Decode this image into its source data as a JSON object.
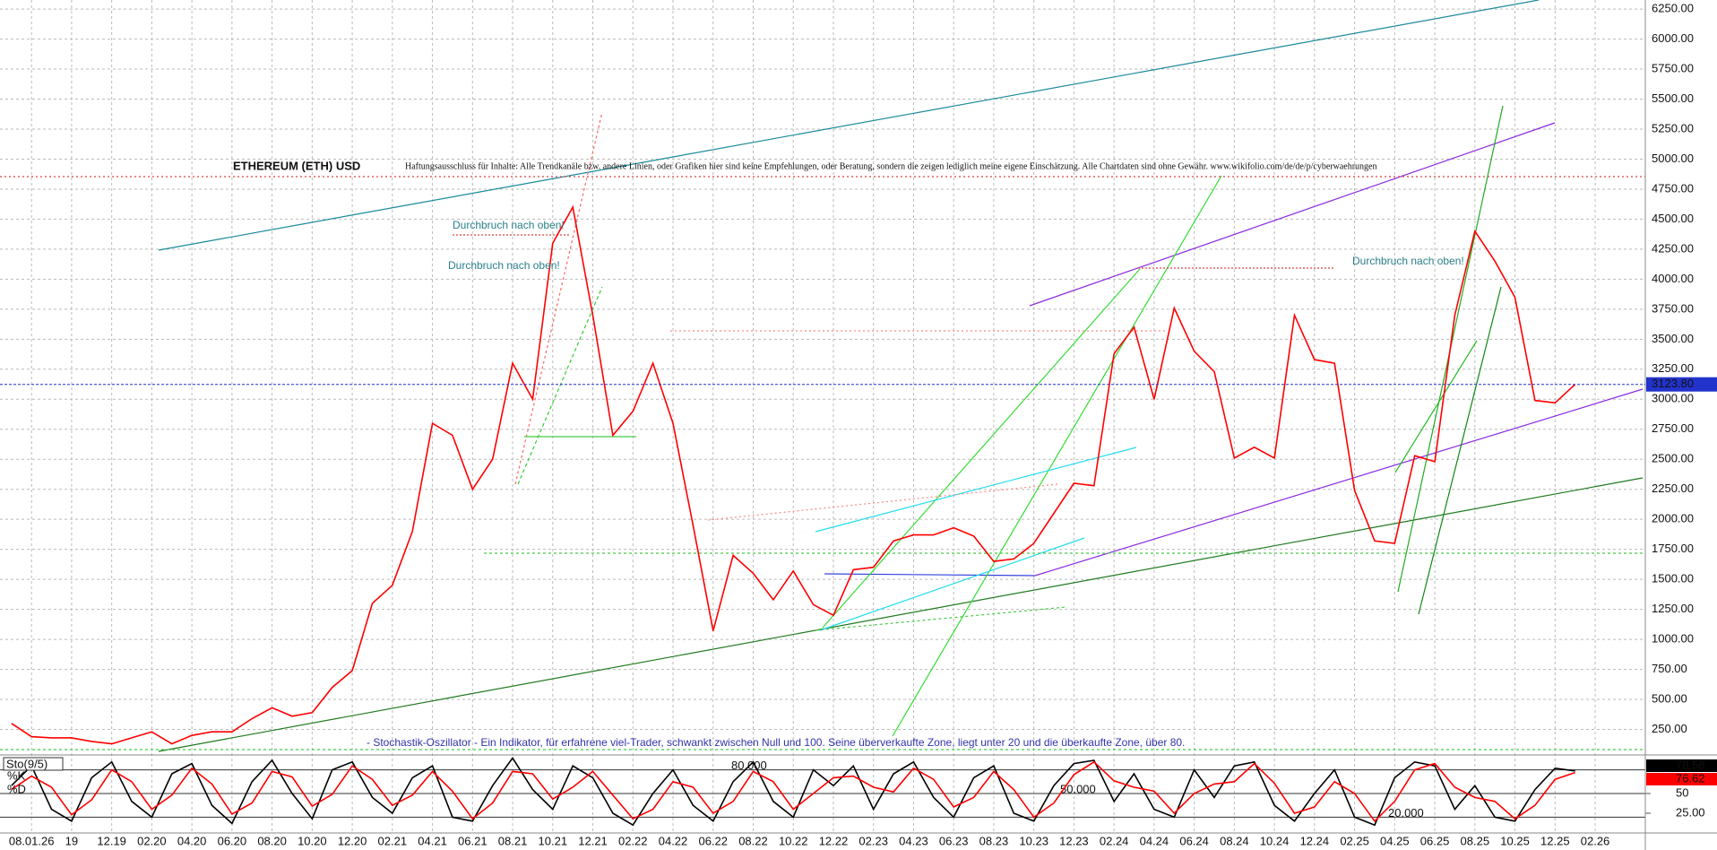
{
  "chart_data": [
    {
      "type": "line",
      "title": "ETHEREUM (ETH) USD",
      "subtitle": "Haftungsausschluss für Inhalte: Alle Trendkanäle bzw. andere Linien, oder Grafiken hier sind keine Empfehlungen, oder Beratung, sondern die zeigen lediglich meine eigene Einschätzung. Alle Chartdaten sind ohne Gewähr. www.wikifolio.com/de/de/p/cyberwaehrungen",
      "annotations": [
        "Durchbruch nach oben!",
        "Durchbruch nach oben!",
        "Durchbruch nach oben!"
      ],
      "categories": [
        null,
        "08.01.26",
        null,
        "19",
        null,
        "12.19",
        null,
        "02.20",
        null,
        "04.20",
        null,
        "06.20",
        null,
        "08.20",
        null,
        "10.20",
        null,
        "12.20",
        null,
        "02.21",
        null,
        "04.21",
        null,
        "06.21",
        null,
        "08.21",
        null,
        "10.21",
        null,
        "12.21",
        null,
        "02.22",
        null,
        "04.22",
        null,
        "06.22",
        null,
        "08.22",
        null,
        "10.22",
        null,
        "12.22",
        null,
        "02.23",
        null,
        "04.23",
        null,
        "06.23",
        null,
        "08.23",
        null,
        "10.23",
        null,
        "12.23",
        null,
        "02.24",
        null,
        "04.24",
        null,
        "06.24",
        null,
        "08.24",
        null,
        "10.24",
        null,
        "12.24",
        null,
        "02.25",
        null,
        "04.25",
        null,
        "06.25",
        null,
        "08.25",
        null,
        "10.25",
        null,
        "12.25",
        null,
        "02.26"
      ],
      "series": [
        {
          "color": "#ff0000",
          "values": [
            300,
            190,
            180,
            180,
            150,
            130,
            180,
            230,
            130,
            200,
            230,
            230,
            340,
            430,
            360,
            390,
            600,
            740,
            1300,
            1450,
            1900,
            2800,
            2700,
            2250,
            2500,
            3300,
            3000,
            4300,
            4600,
            3700,
            2700,
            2900,
            3300,
            2800,
            1950,
            1070,
            1700,
            1550,
            1330,
            1570,
            1290,
            1200,
            1580,
            1600,
            1820,
            1870,
            1870,
            1930,
            1860,
            1650,
            1670,
            1800,
            2050,
            2300,
            2280,
            3380,
            3600,
            3000,
            3760,
            3400,
            3230,
            2510,
            2600,
            2510,
            3700,
            3330,
            3300,
            2240,
            1820,
            1800,
            2530,
            2480,
            3700,
            4400,
            4150,
            3850,
            2990,
            2970,
            3123.8,
            null
          ],
          "value_labels": [
            null,
            null,
            null,
            null,
            null,
            null,
            null,
            null,
            null,
            null,
            null,
            null,
            null,
            null,
            null,
            null,
            null,
            null,
            null,
            null,
            null,
            null,
            null,
            null,
            null,
            null,
            null,
            null,
            null,
            null,
            null,
            null,
            null,
            null,
            null,
            null,
            null,
            null,
            null,
            null,
            null,
            null,
            null,
            null,
            null,
            null,
            null,
            null,
            null,
            null,
            null,
            null,
            null,
            null,
            null,
            null,
            null,
            null,
            null,
            null,
            null,
            null,
            null,
            null,
            null,
            null,
            null,
            null,
            null,
            null,
            null,
            null,
            null,
            null,
            null,
            null,
            null,
            null,
            "3123.80",
            null
          ]
        }
      ],
      "ylim": [
        50,
        6300
      ],
      "yticks": [
        {
          "value": 250,
          "label": "250.00"
        },
        {
          "value": 500,
          "label": "500.00"
        },
        {
          "value": 750,
          "label": "750.00"
        },
        {
          "value": 1000,
          "label": "1000.00"
        },
        {
          "value": 1250,
          "label": "1250.00"
        },
        {
          "value": 1500,
          "label": "1500.00"
        },
        {
          "value": 1750,
          "label": "1750.00"
        },
        {
          "value": 2000,
          "label": "2000.00"
        },
        {
          "value": 2250,
          "label": "2250.00"
        },
        {
          "value": 2500,
          "label": "2500.00"
        },
        {
          "value": 2750,
          "label": "2750.00"
        },
        {
          "value": 3000,
          "label": "3000.00"
        },
        {
          "value": 3250,
          "label": "3250.00"
        },
        {
          "value": 3500,
          "label": "3500.00"
        },
        {
          "value": 3750,
          "label": "3750.00"
        },
        {
          "value": 4000,
          "label": "4000.00"
        },
        {
          "value": 4250,
          "label": "4250.00"
        },
        {
          "value": 4500,
          "label": "4500.00"
        },
        {
          "value": 4750,
          "label": "4750.00"
        },
        {
          "value": 5000,
          "label": "5000.00"
        },
        {
          "value": 5250,
          "label": "5250.00"
        },
        {
          "value": 5500,
          "label": "5500.00"
        },
        {
          "value": 5750,
          "label": "5750.00"
        },
        {
          "value": 6000,
          "label": "6000.00"
        },
        {
          "value": 6250,
          "label": "6250.00"
        }
      ],
      "grid": true
    },
    {
      "type": "line",
      "title": "Sto(9/5)",
      "subtitle": "- Stochastik-Oszillator - Ein Indikator, für erfahrene viel-Trader, schwankt zwischen Null und 100. Seine überverkaufte Zone, liegt unter 20 und die überkaufte Zone, über 80.",
      "series": [
        {
          "name": "%K",
          "color": "#000000",
          "values": [
            60,
            85,
            30,
            15,
            70,
            90,
            40,
            20,
            75,
            88,
            35,
            12,
            65,
            92,
            50,
            18,
            80,
            90,
            45,
            25,
            70,
            85,
            20,
            15,
            60,
            95,
            55,
            30,
            85,
            70,
            25,
            10,
            50,
            80,
            35,
            15,
            65,
            90,
            40,
            20,
            80,
            60,
            85,
            30,
            75,
            90,
            45,
            20,
            70,
            85,
            25,
            15,
            60,
            88,
            92,
            40,
            75,
            30,
            20,
            80,
            45,
            85,
            90,
            35,
            15,
            50,
            80,
            20,
            10,
            70,
            90,
            85,
            30,
            60,
            20,
            15,
            55,
            82,
            78.58,
            null
          ]
        },
        {
          "name": "%D",
          "color": "#ff0000",
          "values": [
            55,
            72,
            58,
            23,
            42,
            80,
            65,
            30,
            48,
            82,
            62,
            24,
            38,
            78,
            71,
            34,
            49,
            85,
            68,
            35,
            48,
            78,
            53,
            18,
            38,
            78,
            75,
            43,
            58,
            78,
            48,
            18,
            30,
            65,
            58,
            25,
            40,
            78,
            65,
            30,
            50,
            70,
            72,
            58,
            52,
            82,
            68,
            33,
            45,
            78,
            55,
            20,
            38,
            74,
            90,
            66,
            58,
            53,
            25,
            50,
            62,
            65,
            88,
            63,
            25,
            33,
            65,
            50,
            15,
            40,
            80,
            88,
            58,
            45,
            40,
            18,
            35,
            68,
            76.62,
            null
          ]
        }
      ],
      "levels": [
        {
          "value": 80,
          "label": "80.000"
        },
        {
          "value": 50,
          "label": "50.000"
        },
        {
          "value": 20,
          "label": "20.000"
        }
      ],
      "ylim": [
        0,
        100
      ],
      "yticks": [
        {
          "value": 25,
          "label": "25.00"
        },
        50
      ]
    }
  ]
}
